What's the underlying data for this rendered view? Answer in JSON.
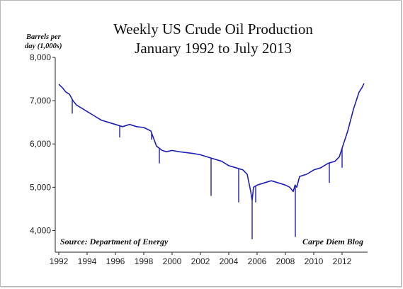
{
  "chart_data": {
    "type": "line",
    "title": "Weekly US Crude Oil Production",
    "subtitle": "January 1992 to July 2013",
    "ylabel_line1": "Barrels per",
    "ylabel_line2": "day (1,000s)",
    "xlabel": "",
    "source_note": "Source: Department of Energy",
    "credit_note": "Carpe Diem Blog",
    "xlim": [
      1991.75,
      2013.8
    ],
    "ylim": [
      3500,
      8000
    ],
    "grid": false,
    "x_ticks": [
      1992,
      1994,
      1996,
      1998,
      2000,
      2002,
      2004,
      2006,
      2008,
      2010,
      2012
    ],
    "x_tick_labels": [
      "1992",
      "1994",
      "1996",
      "1998",
      "2000",
      "2002",
      "2004",
      "2006",
      "2008",
      "2010",
      "2012"
    ],
    "y_ticks": [
      4000,
      5000,
      6000,
      7000,
      8000
    ],
    "y_tick_labels": [
      "4,000",
      "5,000",
      "6,000",
      "7,000",
      "8,000"
    ],
    "line_color": "#1f1fb4",
    "series": [
      {
        "x": [
          1992.0,
          1992.25,
          1992.5,
          1992.75,
          1993.0,
          1993.25,
          1993.5,
          1993.75,
          1994.0,
          1994.25,
          1994.5,
          1994.75,
          1995.0,
          1995.5,
          1996.0,
          1996.5,
          1997.0,
          1997.5,
          1998.0,
          1998.5,
          1998.9,
          1999.1,
          1999.3,
          1999.6,
          2000.0,
          2000.5,
          2001.0,
          2001.5,
          2002.0,
          2002.5,
          2003.0,
          2003.5,
          2004.0,
          2004.5,
          2005.0,
          2005.3,
          2005.55,
          2005.65,
          2005.75,
          2006.0,
          2006.5,
          2007.0,
          2007.5,
          2008.0,
          2008.3,
          2008.55,
          2008.68,
          2008.8,
          2009.0,
          2009.5,
          2010.0,
          2010.5,
          2011.0,
          2011.5,
          2011.8,
          2012.0,
          2012.2,
          2012.4,
          2012.6,
          2012.8,
          2013.0,
          2013.2,
          2013.4,
          2013.55
        ],
        "values": [
          7380,
          7300,
          7200,
          7150,
          7000,
          6900,
          6850,
          6800,
          6750,
          6700,
          6650,
          6600,
          6550,
          6500,
          6450,
          6400,
          6450,
          6400,
          6380,
          6300,
          5950,
          5900,
          5850,
          5820,
          5850,
          5820,
          5800,
          5780,
          5750,
          5700,
          5650,
          5600,
          5500,
          5450,
          5400,
          5300,
          4900,
          4700,
          5000,
          5050,
          5100,
          5150,
          5100,
          5050,
          5000,
          4900,
          5050,
          5000,
          5250,
          5300,
          5400,
          5450,
          5550,
          5600,
          5700,
          5900,
          6100,
          6300,
          6550,
          6800,
          7000,
          7200,
          7300,
          7400
        ]
      }
    ],
    "dips": [
      {
        "x": 1992.95,
        "y": 6700
      },
      {
        "x": 1996.3,
        "y": 6150
      },
      {
        "x": 1998.55,
        "y": 6100
      },
      {
        "x": 1999.1,
        "y": 5550
      },
      {
        "x": 2002.75,
        "y": 4800
      },
      {
        "x": 2004.7,
        "y": 4650
      },
      {
        "x": 2005.65,
        "y": 3800
      },
      {
        "x": 2005.9,
        "y": 4650
      },
      {
        "x": 2008.7,
        "y": 3850
      },
      {
        "x": 2011.1,
        "y": 5100
      },
      {
        "x": 2012.0,
        "y": 5450
      }
    ]
  }
}
